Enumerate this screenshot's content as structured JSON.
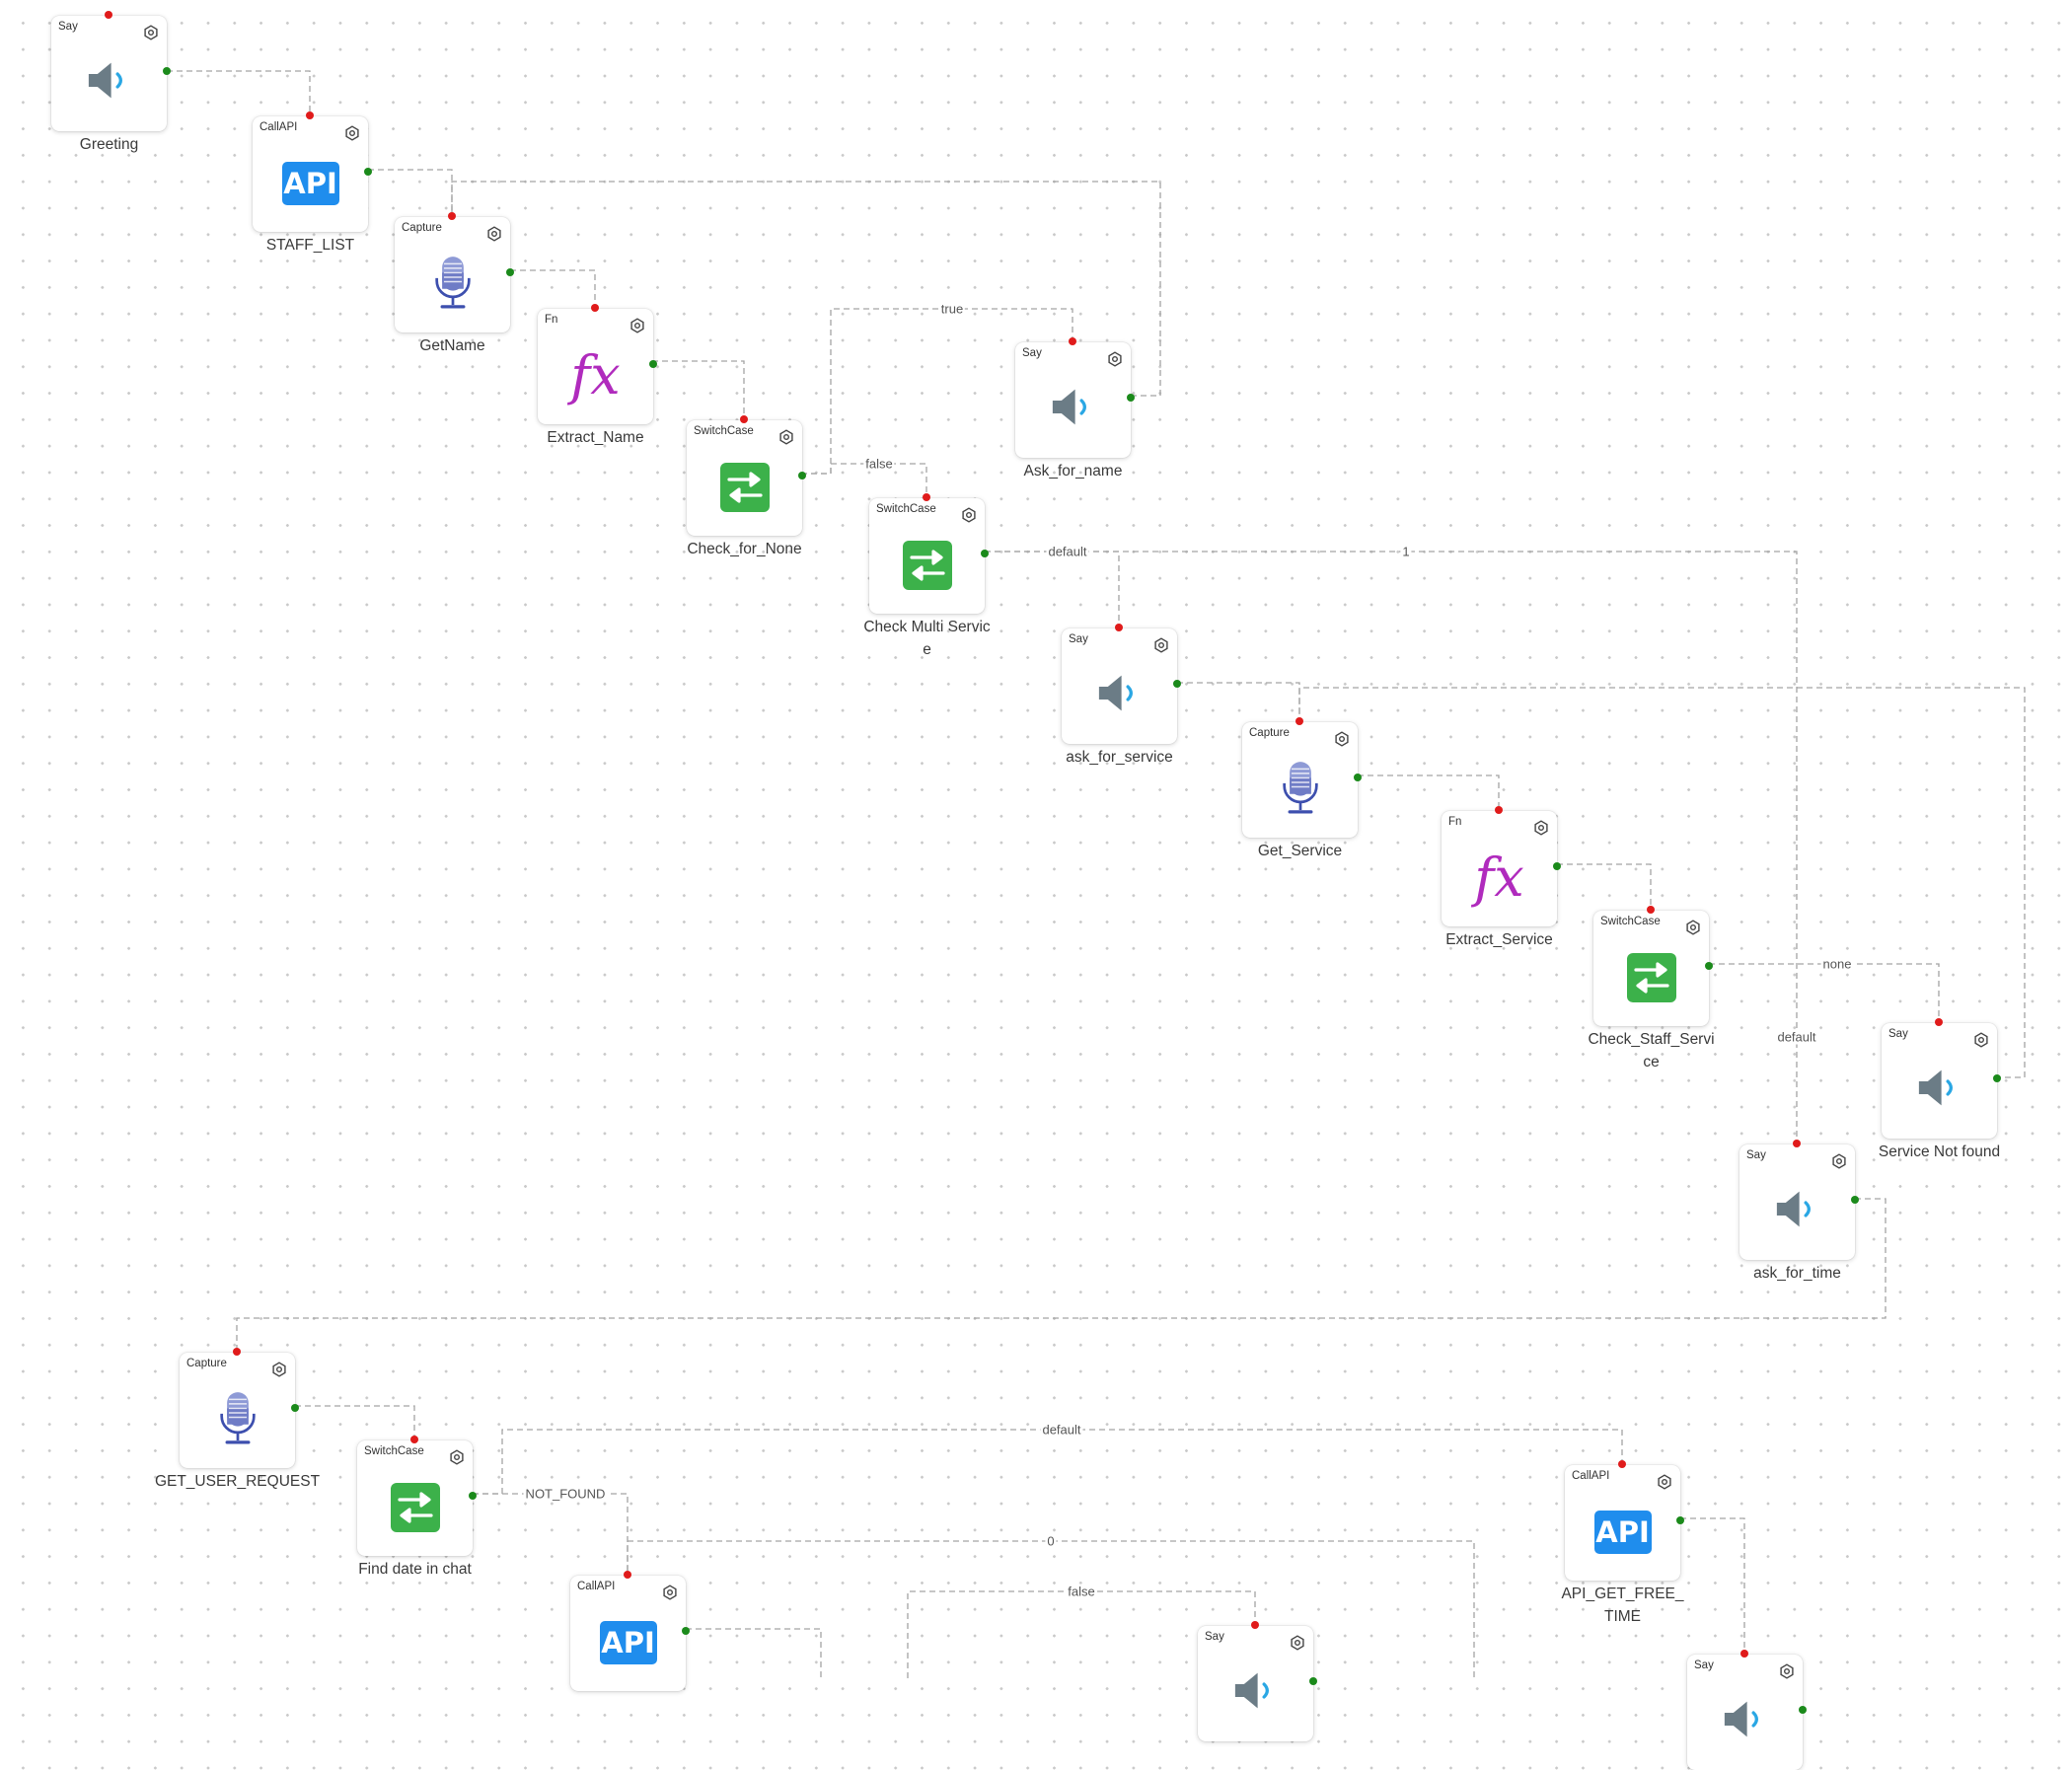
{
  "nodes": [
    {
      "id": "n1",
      "type": "Say",
      "label": "Greeting",
      "icon": "speaker-icon"
    },
    {
      "id": "n2",
      "type": "CallAPI",
      "label": "STAFF_LIST",
      "icon": "api-icon"
    },
    {
      "id": "n3",
      "type": "Capture",
      "label": "GetName",
      "icon": "microphone-icon"
    },
    {
      "id": "n4",
      "type": "Fn",
      "label": "Extract_Name",
      "icon": "function-icon"
    },
    {
      "id": "n5",
      "type": "SwitchCase",
      "label": "Check_for_None",
      "icon": "switch-icon"
    },
    {
      "id": "n6",
      "type": "Say",
      "label": "Ask_for_name",
      "icon": "speaker-icon"
    },
    {
      "id": "n7",
      "type": "SwitchCase",
      "label": "Check Multi Service",
      "icon": "switch-icon"
    },
    {
      "id": "n8",
      "type": "Say",
      "label": "ask_for_service",
      "icon": "speaker-icon"
    },
    {
      "id": "n9",
      "type": "Capture",
      "label": "Get_Service",
      "icon": "microphone-icon"
    },
    {
      "id": "n10",
      "type": "Fn",
      "label": "Extract_Service",
      "icon": "function-icon"
    },
    {
      "id": "n11",
      "type": "SwitchCase",
      "label": "Check_Staff_Service",
      "icon": "switch-icon"
    },
    {
      "id": "n12",
      "type": "Say",
      "label": "Service Not found",
      "icon": "speaker-icon"
    },
    {
      "id": "n13",
      "type": "Say",
      "label": "ask_for_time",
      "icon": "speaker-icon"
    },
    {
      "id": "n14",
      "type": "Capture",
      "label": "GET_USER_REQUEST",
      "icon": "microphone-icon"
    },
    {
      "id": "n15",
      "type": "SwitchCase",
      "label": "Find date in chat",
      "icon": "switch-icon"
    },
    {
      "id": "n16",
      "type": "CallAPI",
      "label": "",
      "icon": "api-icon"
    },
    {
      "id": "n17",
      "type": "CallAPI",
      "label": "API_GET_FREE_TIME",
      "icon": "api-icon"
    },
    {
      "id": "n18",
      "type": "Say",
      "label": "",
      "icon": "speaker-icon"
    },
    {
      "id": "n19",
      "type": "Say",
      "label": "",
      "icon": "speaker-icon"
    }
  ],
  "edge_labels": [
    "true",
    "false",
    "default",
    "1",
    "none",
    "default",
    "default",
    "NOT_FOUND",
    "0",
    "false"
  ],
  "colors": {
    "in_port": "#e01b1b",
    "out_port": "#1b8a1b",
    "api": "#1f8ded",
    "switch": "#3cb14a",
    "fx": "#b02bbd",
    "speaker": "#6b7c86",
    "sound_wave": "#2aa7e4",
    "mic": "#3d4fae"
  }
}
